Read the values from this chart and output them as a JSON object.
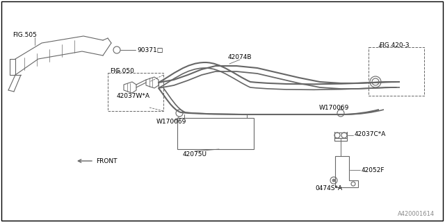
{
  "background_color": "#ffffff",
  "border_color": "#000000",
  "line_color": "#666666",
  "watermark": "A420001614",
  "labels": {
    "fig505": "FIG.505",
    "90371": "90371□",
    "fig050": "FIG.050",
    "42037wa": "42037W*A",
    "42074b": "42074B",
    "fig4203": "FIG.420-3",
    "w170069_left": "W170069",
    "w170069_right": "W170069",
    "42075u": "42075U",
    "42037ca": "42037C*A",
    "42052f": "42052F",
    "04743a": "0474S*A",
    "front": "FRONT"
  }
}
